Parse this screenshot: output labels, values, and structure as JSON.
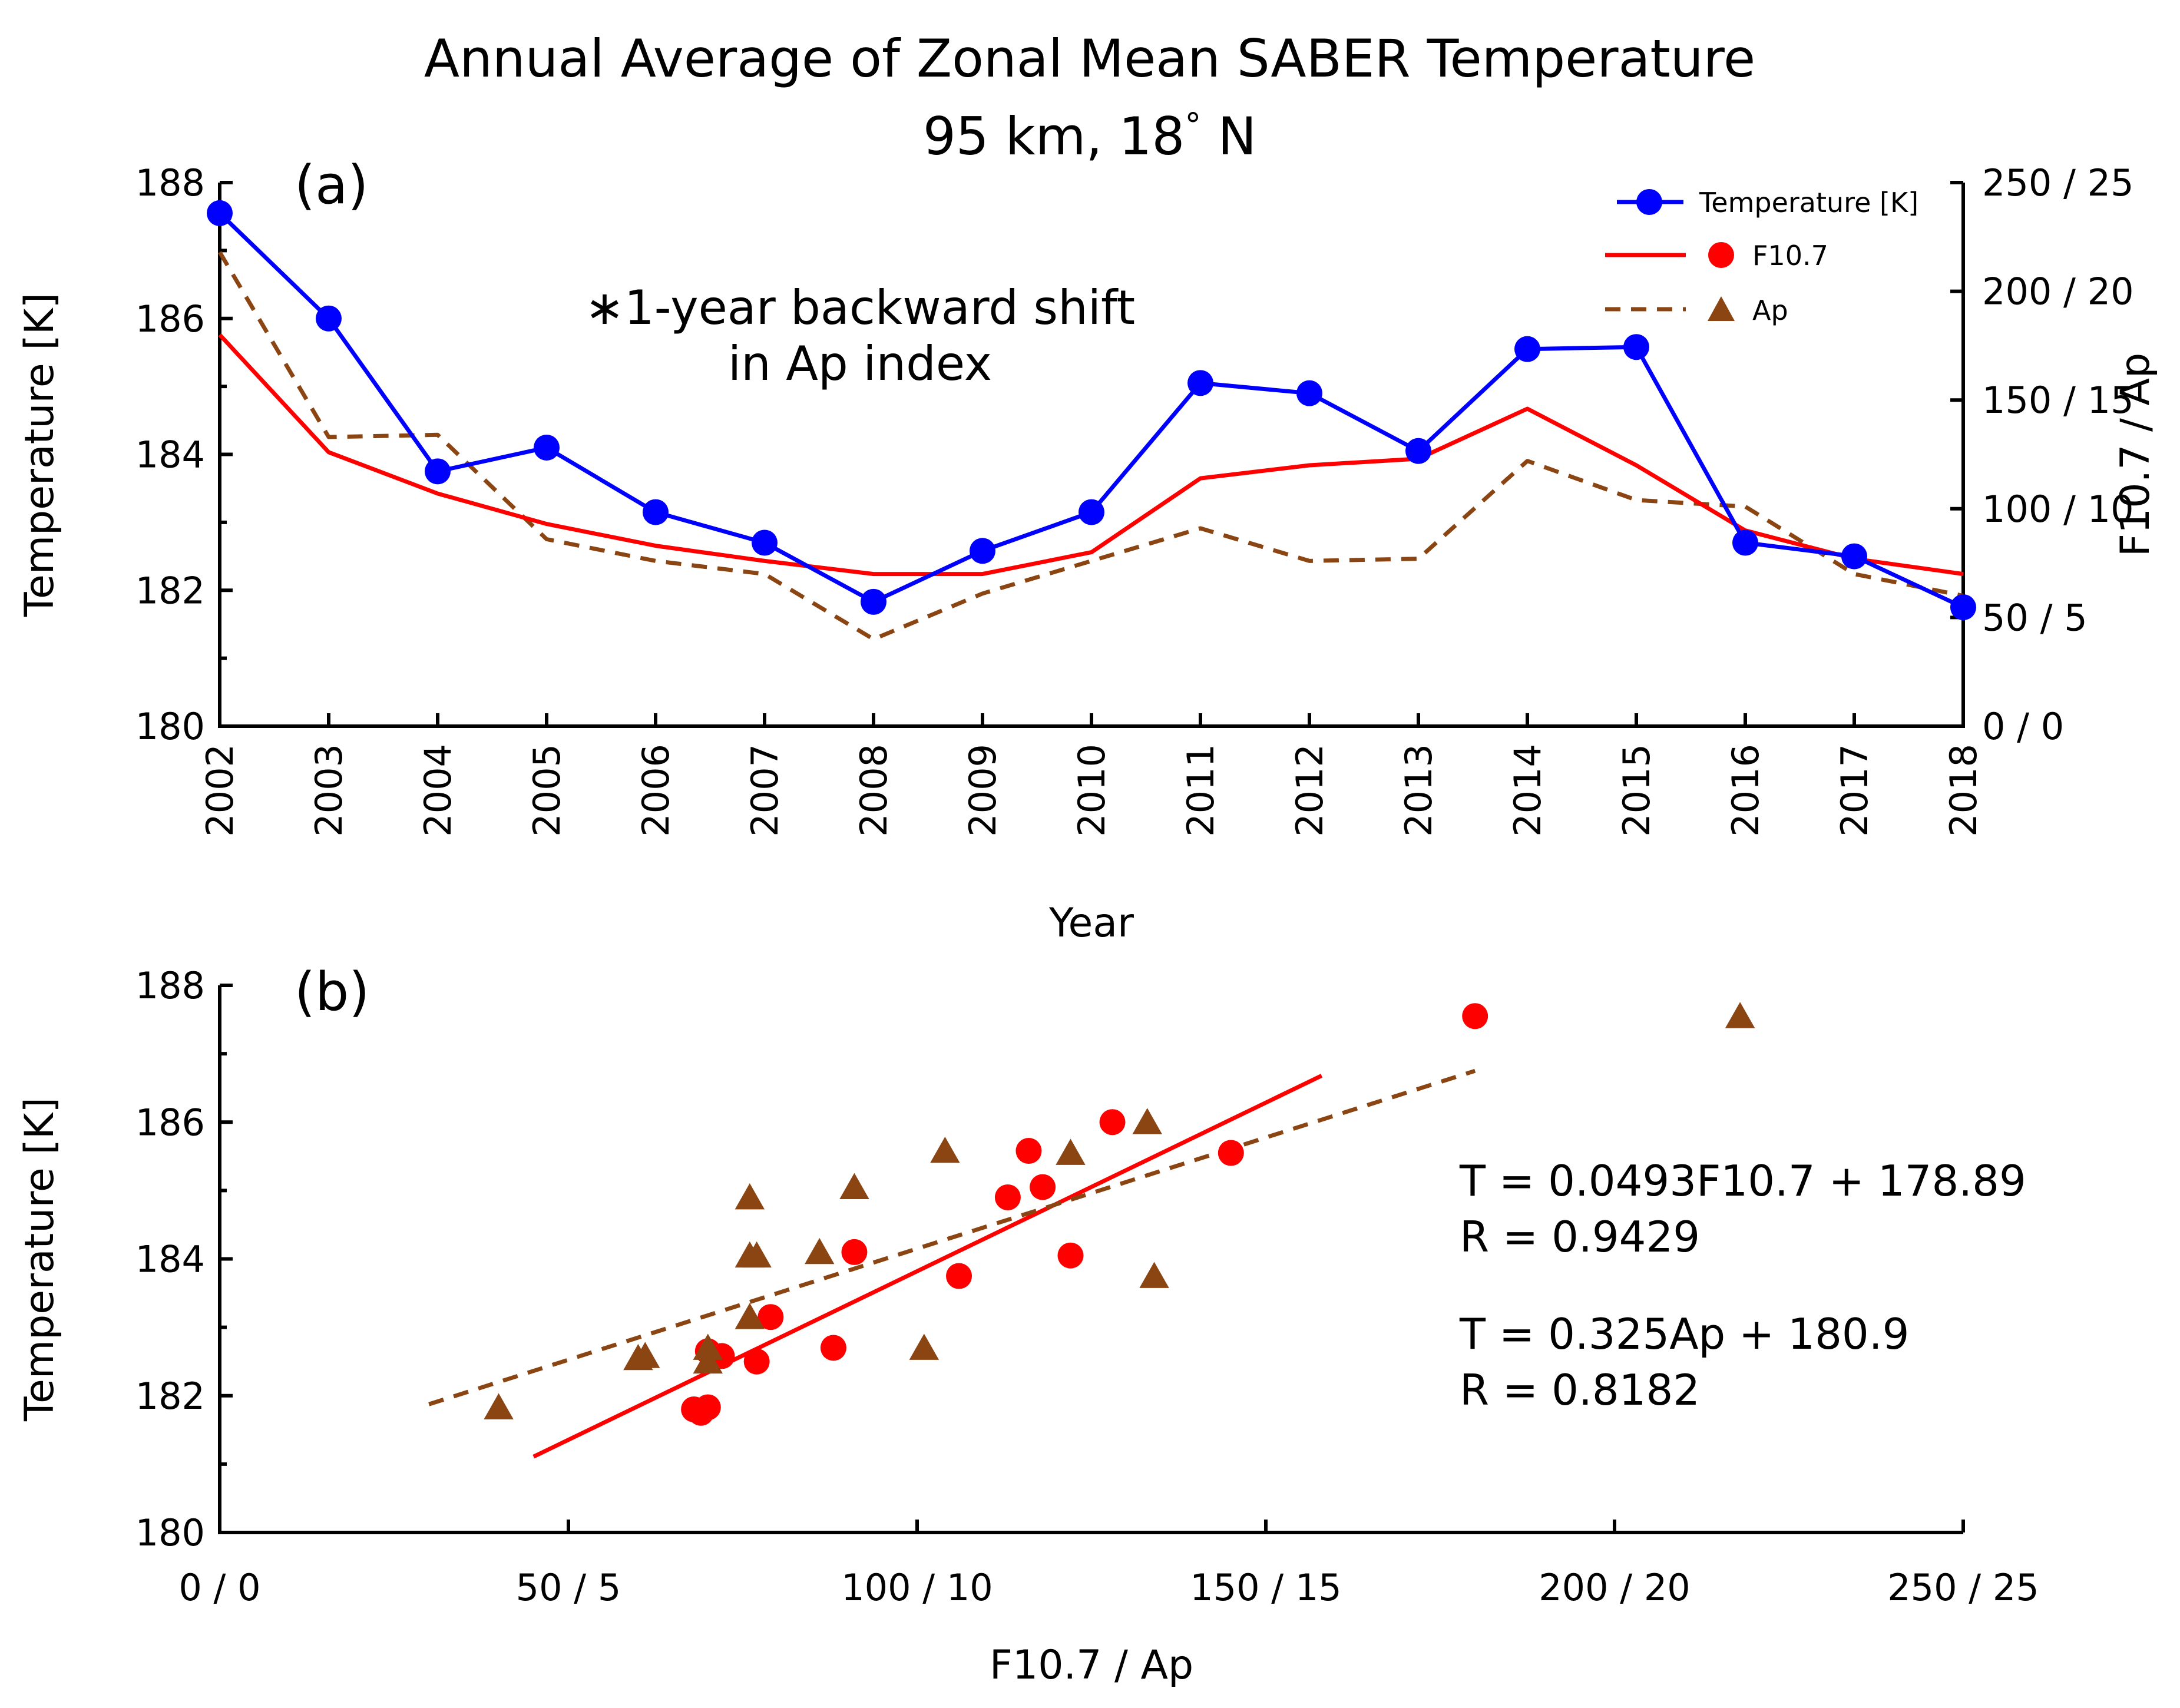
{
  "chart_data": [
    {
      "panel": "(a)",
      "type": "line",
      "title": [
        "Annual Average of Zonal Mean SABER Temperature",
        "95 km, 18° N"
      ],
      "degree_symbol": "°",
      "title_line2_left": "95 km, 18",
      "title_line2_right": " N",
      "xlabel": "Year",
      "ylabel": "Temperature [K]",
      "ylabel_right": "F10.7 / Ap",
      "xlim": [
        2002,
        2018
      ],
      "ylim": [
        180,
        188
      ],
      "right_ylim_f107": [
        0,
        250
      ],
      "x": [
        2002,
        2003,
        2004,
        2005,
        2006,
        2007,
        2008,
        2009,
        2010,
        2011,
        2012,
        2013,
        2014,
        2015,
        2016,
        2017,
        2018
      ],
      "y_ticks": [
        "180",
        "182",
        "184",
        "186",
        "188"
      ],
      "right_ticks": [
        "0 / 0",
        "50 / 5",
        "100 / 10",
        "150 / 15",
        "200 / 20",
        "250 / 25"
      ],
      "series": [
        {
          "name": "Temperature [K]",
          "axis": "left",
          "color": "#0000ff",
          "marker": "circle",
          "values": [
            187.55,
            186.0,
            183.75,
            184.1,
            183.15,
            182.7,
            181.83,
            182.58,
            183.15,
            185.05,
            184.9,
            184.05,
            185.55,
            185.58,
            182.7,
            182.5,
            181.75
          ]
        },
        {
          "name": "F10.7",
          "axis": "right",
          "scale": "f107",
          "color": "#ff0000",
          "style": "solid",
          "values": [
            180,
            126,
            107,
            93,
            83,
            76,
            70,
            70,
            80,
            114,
            120,
            123,
            146,
            120,
            90,
            77,
            70
          ]
        },
        {
          "name": "Ap",
          "axis": "right",
          "scale": "ap",
          "color": "#8b4513",
          "style": "dashed",
          "values": [
            21.8,
            13.3,
            13.4,
            8.6,
            7.6,
            7.0,
            4.0,
            6.1,
            7.6,
            9.1,
            7.6,
            7.7,
            12.2,
            10.4,
            10.1,
            7.0,
            6.0
          ]
        }
      ],
      "legend": [
        {
          "label": "Temperature [K]",
          "color": "#0000ff"
        },
        {
          "label": "F10.7",
          "color": "#ff0000"
        },
        {
          "label": "Ap",
          "color": "#8b4513"
        }
      ],
      "legend_position": "top-right",
      "annotation": "∗1-year backward shift\nin Ap index",
      "annotation_lines": [
        "∗1-year backward shift",
        "in Ap index"
      ]
    },
    {
      "panel": "(b)",
      "type": "scatter",
      "xlabel": "F10.7 / Ap",
      "ylabel": "Temperature [K]",
      "xlim": [
        0,
        250
      ],
      "ylim": [
        180,
        188
      ],
      "x_ticks": [
        "0 / 0",
        "50 / 5",
        "100 / 10",
        "150 / 15",
        "200 / 20",
        "250 / 25"
      ],
      "y_ticks": [
        "180",
        "182",
        "184",
        "186",
        "188"
      ],
      "series": [
        {
          "name": "F10.7",
          "color": "#ff0000",
          "marker": "circle",
          "x": [
            180,
            128,
            106,
            91,
            79,
            88,
            70,
            72,
            118,
            113,
            122,
            116,
            145,
            77,
            68,
            69,
            70
          ],
          "y": [
            187.55,
            186.0,
            183.75,
            184.1,
            183.15,
            182.7,
            181.83,
            182.58,
            185.05,
            184.9,
            184.05,
            185.58,
            185.55,
            182.5,
            181.8,
            181.75,
            182.65
          ]
        },
        {
          "name": "Ap",
          "color": "#8b4513",
          "marker": "triangle",
          "x": [
            21.8,
            13.3,
            13.4,
            8.6,
            7.6,
            7.0,
            4.0,
            6.1,
            7.6,
            9.1,
            7.6,
            7.7,
            12.2,
            10.4,
            10.1,
            7.0,
            6.0
          ],
          "y": [
            187.55,
            186.0,
            183.75,
            184.1,
            183.15,
            182.7,
            181.83,
            182.58,
            184.9,
            185.05,
            184.05,
            184.05,
            185.55,
            185.58,
            182.7,
            182.5,
            182.55
          ]
        }
      ],
      "fits": [
        {
          "name": "F10.7 fit",
          "color": "#ff0000",
          "style": "solid",
          "slope": 0.0493,
          "intercept": 178.89,
          "x_range": [
            45,
            158
          ]
        },
        {
          "name": "Ap fit",
          "color": "#8b4513",
          "style": "dashed",
          "slope": 0.325,
          "intercept": 180.9,
          "x_range": [
            3,
            18
          ]
        }
      ],
      "equations": [
        "T = 0.0493F10.7 + 178.89",
        "R = 0.9429",
        "T = 0.325Ap + 180.9",
        "R = 0.8182"
      ]
    }
  ]
}
